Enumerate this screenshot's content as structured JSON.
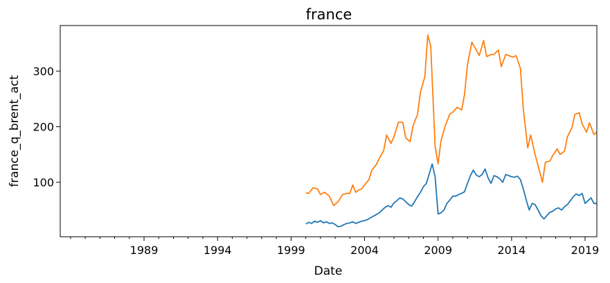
{
  "chart_data": {
    "type": "line",
    "title": "france",
    "xlabel": "Date",
    "ylabel": "france_q_brent_act",
    "xlim": [
      1983.3,
      2019.8
    ],
    "ylim": [
      2,
      382
    ],
    "x_ticks": [
      1989,
      1994,
      1999,
      2004,
      2009,
      2014,
      2019
    ],
    "y_ticks": [
      100,
      200,
      300
    ],
    "grid": false,
    "legend": "none",
    "series": [
      {
        "color": "#1f77b4",
        "points": [
          [
            2000.0,
            25
          ],
          [
            2000.2,
            28
          ],
          [
            2000.4,
            26
          ],
          [
            2000.6,
            30
          ],
          [
            2000.8,
            28
          ],
          [
            2001.0,
            31
          ],
          [
            2001.2,
            27
          ],
          [
            2001.4,
            29
          ],
          [
            2001.6,
            26
          ],
          [
            2001.8,
            27
          ],
          [
            2002.0,
            24
          ],
          [
            2002.2,
            20
          ],
          [
            2002.4,
            21
          ],
          [
            2002.6,
            24
          ],
          [
            2002.8,
            26
          ],
          [
            2003.0,
            27
          ],
          [
            2003.2,
            29
          ],
          [
            2003.4,
            26
          ],
          [
            2003.6,
            28
          ],
          [
            2003.8,
            30
          ],
          [
            2004.0,
            31
          ],
          [
            2004.2,
            33
          ],
          [
            2004.4,
            36
          ],
          [
            2004.6,
            39
          ],
          [
            2004.8,
            42
          ],
          [
            2005.0,
            45
          ],
          [
            2005.2,
            50
          ],
          [
            2005.4,
            55
          ],
          [
            2005.6,
            58
          ],
          [
            2005.8,
            55
          ],
          [
            2006.0,
            63
          ],
          [
            2006.2,
            67
          ],
          [
            2006.4,
            72
          ],
          [
            2006.6,
            70
          ],
          [
            2006.8,
            65
          ],
          [
            2007.0,
            60
          ],
          [
            2007.2,
            57
          ],
          [
            2007.4,
            65
          ],
          [
            2007.6,
            74
          ],
          [
            2007.8,
            82
          ],
          [
            2008.0,
            92
          ],
          [
            2008.2,
            98
          ],
          [
            2008.4,
            115
          ],
          [
            2008.6,
            133
          ],
          [
            2008.8,
            110
          ],
          [
            2009.0,
            43
          ],
          [
            2009.2,
            45
          ],
          [
            2009.4,
            50
          ],
          [
            2009.6,
            62
          ],
          [
            2009.8,
            68
          ],
          [
            2010.0,
            75
          ],
          [
            2010.2,
            75
          ],
          [
            2010.4,
            78
          ],
          [
            2010.6,
            80
          ],
          [
            2010.8,
            83
          ],
          [
            2011.0,
            98
          ],
          [
            2011.2,
            112
          ],
          [
            2011.4,
            122
          ],
          [
            2011.6,
            113
          ],
          [
            2011.8,
            110
          ],
          [
            2012.0,
            114
          ],
          [
            2012.2,
            124
          ],
          [
            2012.4,
            108
          ],
          [
            2012.6,
            98
          ],
          [
            2012.8,
            112
          ],
          [
            2013.0,
            110
          ],
          [
            2013.2,
            106
          ],
          [
            2013.4,
            100
          ],
          [
            2013.6,
            114
          ],
          [
            2013.8,
            112
          ],
          [
            2014.0,
            110
          ],
          [
            2014.2,
            109
          ],
          [
            2014.4,
            111
          ],
          [
            2014.6,
            105
          ],
          [
            2014.8,
            88
          ],
          [
            2015.0,
            68
          ],
          [
            2015.2,
            50
          ],
          [
            2015.4,
            62
          ],
          [
            2015.6,
            60
          ],
          [
            2015.8,
            50
          ],
          [
            2016.0,
            40
          ],
          [
            2016.2,
            34
          ],
          [
            2016.4,
            40
          ],
          [
            2016.6,
            46
          ],
          [
            2016.8,
            48
          ],
          [
            2017.0,
            52
          ],
          [
            2017.2,
            54
          ],
          [
            2017.4,
            50
          ],
          [
            2017.6,
            56
          ],
          [
            2017.8,
            60
          ],
          [
            2018.0,
            67
          ],
          [
            2018.2,
            74
          ],
          [
            2018.4,
            79
          ],
          [
            2018.6,
            76
          ],
          [
            2018.8,
            80
          ],
          [
            2019.0,
            62
          ],
          [
            2019.2,
            67
          ],
          [
            2019.4,
            72
          ],
          [
            2019.6,
            62
          ],
          [
            2019.8,
            62
          ]
        ]
      },
      {
        "color": "#ff7f0e",
        "points": [
          [
            2000.0,
            81
          ],
          [
            2000.2,
            80
          ],
          [
            2000.5,
            90
          ],
          [
            2000.8,
            88
          ],
          [
            2001.0,
            78
          ],
          [
            2001.3,
            82
          ],
          [
            2001.6,
            75
          ],
          [
            2001.9,
            58
          ],
          [
            2002.2,
            65
          ],
          [
            2002.5,
            78
          ],
          [
            2002.8,
            80
          ],
          [
            2003.0,
            80
          ],
          [
            2003.2,
            95
          ],
          [
            2003.4,
            82
          ],
          [
            2003.6,
            86
          ],
          [
            2003.8,
            88
          ],
          [
            2004.0,
            95
          ],
          [
            2004.3,
            105
          ],
          [
            2004.5,
            122
          ],
          [
            2004.8,
            132
          ],
          [
            2005.0,
            143
          ],
          [
            2005.3,
            157
          ],
          [
            2005.5,
            185
          ],
          [
            2005.8,
            170
          ],
          [
            2006.0,
            182
          ],
          [
            2006.3,
            208
          ],
          [
            2006.6,
            208
          ],
          [
            2006.8,
            180
          ],
          [
            2007.1,
            173
          ],
          [
            2007.3,
            202
          ],
          [
            2007.6,
            222
          ],
          [
            2007.8,
            262
          ],
          [
            2008.1,
            290
          ],
          [
            2008.3,
            365
          ],
          [
            2008.5,
            345
          ],
          [
            2008.8,
            165
          ],
          [
            2009.0,
            133
          ],
          [
            2009.2,
            175
          ],
          [
            2009.5,
            202
          ],
          [
            2009.8,
            223
          ],
          [
            2010.0,
            226
          ],
          [
            2010.3,
            235
          ],
          [
            2010.6,
            230
          ],
          [
            2010.8,
            258
          ],
          [
            2011.0,
            312
          ],
          [
            2011.3,
            352
          ],
          [
            2011.6,
            338
          ],
          [
            2011.8,
            328
          ],
          [
            2012.1,
            355
          ],
          [
            2012.3,
            326
          ],
          [
            2012.6,
            330
          ],
          [
            2012.8,
            330
          ],
          [
            2013.1,
            338
          ],
          [
            2013.3,
            308
          ],
          [
            2013.6,
            330
          ],
          [
            2013.8,
            328
          ],
          [
            2014.1,
            325
          ],
          [
            2014.3,
            328
          ],
          [
            2014.6,
            305
          ],
          [
            2014.8,
            232
          ],
          [
            2015.1,
            162
          ],
          [
            2015.3,
            185
          ],
          [
            2015.6,
            150
          ],
          [
            2015.8,
            130
          ],
          [
            2016.1,
            100
          ],
          [
            2016.3,
            136
          ],
          [
            2016.6,
            138
          ],
          [
            2016.8,
            148
          ],
          [
            2017.1,
            160
          ],
          [
            2017.3,
            150
          ],
          [
            2017.6,
            156
          ],
          [
            2017.8,
            182
          ],
          [
            2018.1,
            198
          ],
          [
            2018.3,
            222
          ],
          [
            2018.6,
            225
          ],
          [
            2018.8,
            205
          ],
          [
            2019.1,
            190
          ],
          [
            2019.3,
            207
          ],
          [
            2019.6,
            186
          ],
          [
            2019.8,
            190
          ]
        ]
      }
    ]
  }
}
